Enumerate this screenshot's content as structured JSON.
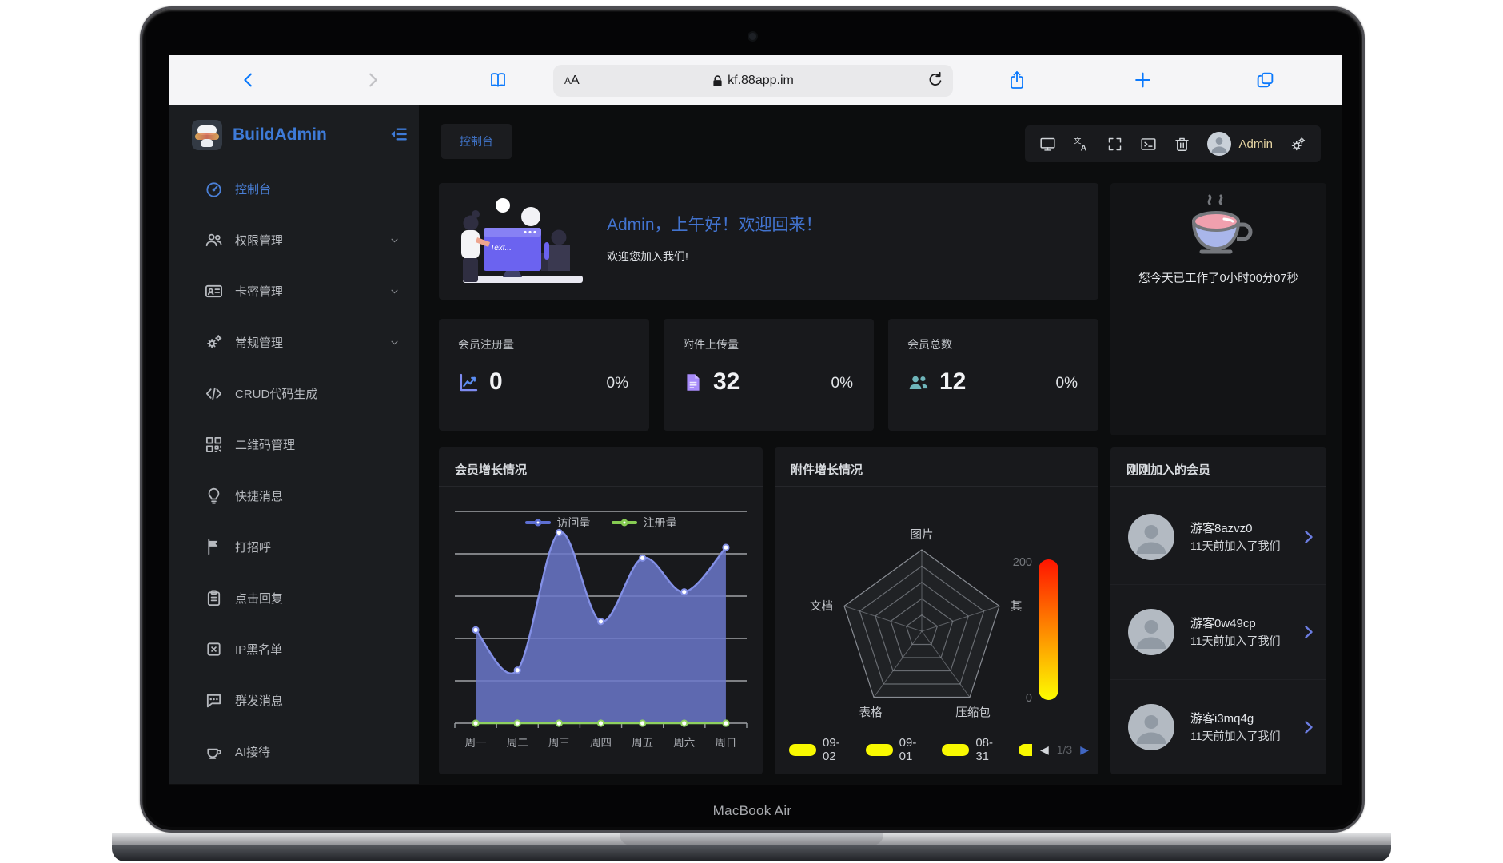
{
  "laptop": {
    "label": "MacBook Air"
  },
  "browser": {
    "reader_label_small": "A",
    "reader_label_big": "A",
    "url": "kf.88app.im"
  },
  "sidebar": {
    "brand": "BuildAdmin",
    "items": [
      {
        "label": "控制台",
        "icon": "dashboard-icon",
        "active": true,
        "expandable": false
      },
      {
        "label": "权限管理",
        "icon": "users-icon",
        "active": false,
        "expandable": true
      },
      {
        "label": "卡密管理",
        "icon": "id-card-icon",
        "active": false,
        "expandable": true
      },
      {
        "label": "常规管理",
        "icon": "gears-icon",
        "active": false,
        "expandable": true
      },
      {
        "label": "CRUD代码生成",
        "icon": "code-icon",
        "active": false,
        "expandable": false
      },
      {
        "label": "二维码管理",
        "icon": "qrcode-icon",
        "active": false,
        "expandable": false
      },
      {
        "label": "快捷消息",
        "icon": "lightbulb-icon",
        "active": false,
        "expandable": false
      },
      {
        "label": "打招呼",
        "icon": "flag-icon",
        "active": false,
        "expandable": false
      },
      {
        "label": "点击回复",
        "icon": "clipboard-icon",
        "active": false,
        "expandable": false
      },
      {
        "label": "IP黑名单",
        "icon": "blacklist-icon",
        "active": false,
        "expandable": false
      },
      {
        "label": "群发消息",
        "icon": "message-icon",
        "active": false,
        "expandable": false
      },
      {
        "label": "AI接待",
        "icon": "cup-icon",
        "active": false,
        "expandable": false
      }
    ]
  },
  "header": {
    "tab": "控制台",
    "username": "Admin"
  },
  "welcome": {
    "greeting": "Admin，上午好！欢迎回来！",
    "message": "欢迎您加入我们!",
    "screen_text": "Text..."
  },
  "worktime": {
    "text": "您今天已工作了0小时00分07秒"
  },
  "stats": [
    {
      "label": "会员注册量",
      "value": "0",
      "percent": "0%",
      "icon": "line-chart-icon",
      "color": "#7e8bf0"
    },
    {
      "label": "附件上传量",
      "value": "32",
      "percent": "0%",
      "icon": "document-icon",
      "color": "#a78bfa"
    },
    {
      "label": "会员总数",
      "value": "12",
      "percent": "0%",
      "icon": "members-icon",
      "color": "#6fb5ba"
    }
  ],
  "chart_data": [
    {
      "type": "area",
      "title": "会员增长情况",
      "categories": [
        "周一",
        "周二",
        "周三",
        "周四",
        "周五",
        "周六",
        "周日"
      ],
      "series": [
        {
          "name": "访问量",
          "values": [
            44,
            25,
            90,
            48,
            78,
            62,
            83
          ],
          "color": "#6b78ca",
          "line_color": "#8390e6"
        },
        {
          "name": "注册量",
          "values": [
            0,
            0,
            0,
            0,
            0,
            0,
            0
          ],
          "color": "#8fd160",
          "line_color": "#8fd160"
        }
      ],
      "xlabel": "",
      "ylabel": "",
      "ylim": [
        0,
        100
      ],
      "grid": true,
      "legend_position": "top-center"
    },
    {
      "type": "radar",
      "title": "附件增长情况",
      "axes": [
        "图片",
        "其",
        "压缩包",
        "表格",
        "文档"
      ],
      "rings": 5,
      "max": 200,
      "series": [
        {
          "name": "09-02",
          "values": [
            0,
            0,
            0,
            0,
            0
          ],
          "color": "#f8f800"
        },
        {
          "name": "09-01",
          "values": [
            0,
            0,
            0,
            0,
            0
          ],
          "color": "#f8f800"
        },
        {
          "name": "08-31",
          "values": [
            0,
            0,
            0,
            0,
            0
          ],
          "color": "#f8f800"
        }
      ],
      "gauge": {
        "max_label": "200",
        "min_label": "0",
        "top_color": "#ff1400",
        "bottom_color": "#fdfd00"
      },
      "pagination": {
        "page": "1/3"
      },
      "legend_position": "bottom-left"
    }
  ],
  "members": {
    "title": "刚刚加入的会员",
    "items": [
      {
        "name": "游客8azvz0",
        "joined": "11天前加入了我们"
      },
      {
        "name": "游客0w49cp",
        "joined": "11天前加入了我们"
      },
      {
        "name": "游客i3mq4g",
        "joined": "11天前加入了我们"
      }
    ]
  },
  "colors": {
    "accent": "#3e7bd8",
    "card": "#18191c",
    "sidebar": "#1b1d20",
    "page_bg": "#0c0d0e",
    "legend_yellow": "#f8f800"
  }
}
